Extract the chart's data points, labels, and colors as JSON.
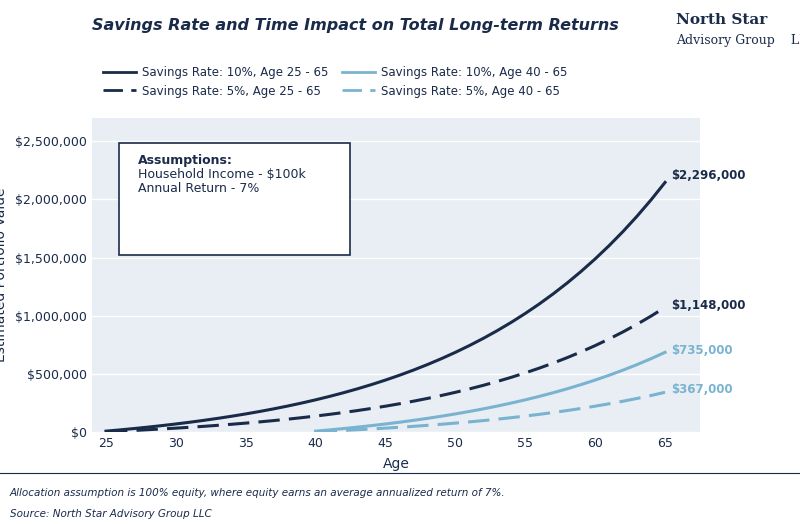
{
  "title": "Savings Rate and Time Impact on Total Long-term Returns",
  "xlabel": "Age",
  "ylabel": "Estimated Portfolio Value",
  "background_color": "#ffffff",
  "plot_bg_color": "#e8eef4",
  "dark_navy": "#1a2b4a",
  "light_blue": "#7ab3d0",
  "footer_bg": "#dce6f0",
  "labels": {
    "s10_25": "Savings Rate: 10%, Age 25 - 65",
    "s5_25": "Savings Rate: 5%, Age 25 - 65",
    "s10_40": "Savings Rate: 10%, Age 40 - 65",
    "s5_40": "Savings Rate: 5%, Age 40 - 65"
  },
  "end_values": {
    "s10_25": "$2,296,000",
    "s5_25": "$1,148,000",
    "s10_40": "$735,000",
    "s5_40": "$367,000"
  },
  "assumptions_line1": "Assumptions:",
  "assumptions_line2": "Household Income - $100k",
  "assumptions_line3": "Annual Return - 7%",
  "footer_line1": "Allocation assumption is 100% equity, where equity earns an average annualized return of 7%.",
  "footer_line2": "Source: North Star Advisory Group LLC",
  "ylim": [
    0,
    2700000
  ],
  "xlim": [
    24,
    67.5
  ],
  "yticks": [
    0,
    500000,
    1000000,
    1500000,
    2000000,
    2500000
  ],
  "xticks": [
    25,
    30,
    35,
    40,
    45,
    50,
    55,
    60,
    65
  ]
}
